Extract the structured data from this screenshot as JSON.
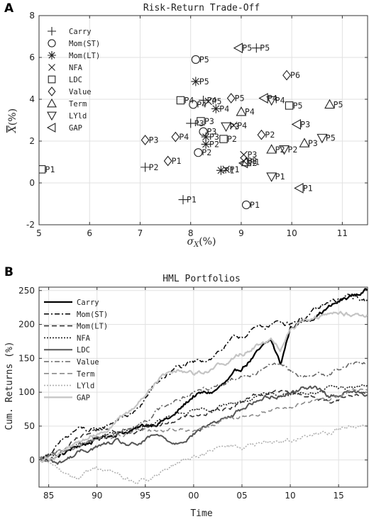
{
  "chart_data": [
    {
      "panel": "A",
      "type": "scatter",
      "title": "Risk-Return Trade-Off",
      "xlabel": "σ_X(%)",
      "ylabel": "X̄(%)",
      "xlim": [
        5,
        11.5
      ],
      "ylim": [
        -2,
        8
      ],
      "xticks": [
        5,
        6,
        7,
        8,
        9,
        10,
        11
      ],
      "yticks": [
        -2,
        0,
        2,
        4,
        6,
        8
      ],
      "grid": true,
      "legend_position": "top-left",
      "series": [
        {
          "name": "Carry",
          "marker": "plus",
          "points": [
            {
              "label": "P1",
              "x": 7.85,
              "y": -0.8
            },
            {
              "label": "P2",
              "x": 7.1,
              "y": 0.75
            },
            {
              "label": "P3",
              "x": 8.0,
              "y": 2.85
            },
            {
              "label": "P4",
              "x": 8.25,
              "y": 3.95
            },
            {
              "label": "P5",
              "x": 9.3,
              "y": 6.45
            }
          ]
        },
        {
          "name": "Mom(ST)",
          "marker": "circle",
          "points": [
            {
              "label": "P1",
              "x": 9.1,
              "y": -1.05
            },
            {
              "label": "P2",
              "x": 8.15,
              "y": 1.45
            },
            {
              "label": "P3",
              "x": 8.25,
              "y": 2.45
            },
            {
              "label": "P4",
              "x": 8.05,
              "y": 3.75
            },
            {
              "label": "P5",
              "x": 8.1,
              "y": 5.9
            }
          ]
        },
        {
          "name": "Mom(LT)",
          "marker": "star",
          "points": [
            {
              "label": "P1",
              "x": 8.6,
              "y": 0.6
            },
            {
              "label": "P2",
              "x": 8.3,
              "y": 1.85
            },
            {
              "label": "P3",
              "x": 8.3,
              "y": 2.2
            },
            {
              "label": "P4",
              "x": 8.5,
              "y": 3.55
            },
            {
              "label": "P5",
              "x": 8.1,
              "y": 4.85
            }
          ]
        },
        {
          "name": "NFA",
          "marker": "x",
          "points": [
            {
              "label": "P1",
              "x": 8.7,
              "y": 0.65
            },
            {
              "label": "P2",
              "x": 9.05,
              "y": 1.05
            },
            {
              "label": "P3",
              "x": 9.05,
              "y": 1.35
            },
            {
              "label": "P4",
              "x": 8.85,
              "y": 2.75
            },
            {
              "label": "P5",
              "x": 8.35,
              "y": 3.9
            }
          ]
        },
        {
          "name": "LDC",
          "marker": "square",
          "points": [
            {
              "label": "P1",
              "x": 5.05,
              "y": 0.65
            },
            {
              "label": "P2",
              "x": 8.65,
              "y": 2.1
            },
            {
              "label": "P3",
              "x": 8.2,
              "y": 2.95
            },
            {
              "label": "P4",
              "x": 7.8,
              "y": 3.95
            },
            {
              "label": "P5",
              "x": 9.95,
              "y": 3.7
            }
          ]
        },
        {
          "name": "Value",
          "marker": "diamond",
          "points": [
            {
              "label": "P1",
              "x": 7.55,
              "y": 1.05
            },
            {
              "label": "P2",
              "x": 9.4,
              "y": 2.3
            },
            {
              "label": "P3",
              "x": 7.1,
              "y": 2.05
            },
            {
              "label": "P4",
              "x": 7.7,
              "y": 2.2
            },
            {
              "label": "P5",
              "x": 8.8,
              "y": 4.05
            },
            {
              "label": "P6",
              "x": 9.9,
              "y": 5.15
            }
          ]
        },
        {
          "name": "Term",
          "marker": "triangle-up",
          "points": [
            {
              "label": "P1",
              "x": 9.1,
              "y": 1.0
            },
            {
              "label": "P2",
              "x": 9.6,
              "y": 1.6
            },
            {
              "label": "P3",
              "x": 10.25,
              "y": 1.9
            },
            {
              "label": "P4",
              "x": 9.0,
              "y": 3.4
            },
            {
              "label": "P5",
              "x": 10.75,
              "y": 3.75
            }
          ]
        },
        {
          "name": "LYld",
          "marker": "triangle-down",
          "points": [
            {
              "label": "P1",
              "x": 9.6,
              "y": 0.3
            },
            {
              "label": "P2",
              "x": 9.85,
              "y": 1.6
            },
            {
              "label": "P3",
              "x": 8.7,
              "y": 2.7
            },
            {
              "label": "P4",
              "x": 9.6,
              "y": 3.95
            },
            {
              "label": "P5",
              "x": 10.6,
              "y": 2.15
            }
          ]
        },
        {
          "name": "GAP",
          "marker": "triangle-left",
          "points": [
            {
              "label": "P1",
              "x": 10.15,
              "y": -0.25
            },
            {
              "label": "P2",
              "x": 9.05,
              "y": 0.95
            },
            {
              "label": "P3",
              "x": 10.1,
              "y": 2.8
            },
            {
              "label": "P4",
              "x": 9.45,
              "y": 4.05
            },
            {
              "label": "P5",
              "x": 8.95,
              "y": 6.45
            }
          ]
        }
      ]
    },
    {
      "panel": "B",
      "type": "line",
      "title": "HML Portfolios",
      "xlabel": "Time",
      "ylabel": "Cum. Returns (%)",
      "xlim": [
        1984,
        2018
      ],
      "ylim": [
        -40,
        255
      ],
      "xticks": [
        1985,
        1990,
        1995,
        2000,
        2005,
        2010,
        2015
      ],
      "xticklabels": [
        "85",
        "90",
        "95",
        "00",
        "05",
        "10",
        "15"
      ],
      "yticks": [
        0,
        50,
        100,
        150,
        200,
        250
      ],
      "grid": true,
      "legend_position": "top-left",
      "series": [
        {
          "name": "Carry",
          "color": "#000000",
          "width": 2.2,
          "dash": "",
          "noise": 5,
          "x": [
            1984,
            1986,
            1988,
            1990,
            1992,
            1994,
            1996,
            1998,
            2000,
            2002,
            2004,
            2006,
            2008,
            2009,
            2010,
            2012,
            2014,
            2016,
            2018
          ],
          "y": [
            0,
            5,
            20,
            30,
            40,
            45,
            55,
            65,
            95,
            100,
            120,
            150,
            175,
            140,
            195,
            210,
            225,
            240,
            250
          ]
        },
        {
          "name": "Mom(ST)",
          "color": "#111111",
          "width": 1.6,
          "dash": "7 3 2 3",
          "noise": 6,
          "x": [
            1984,
            1986,
            1988,
            1990,
            1992,
            1994,
            1996,
            1998,
            2000,
            2002,
            2004,
            2006,
            2008,
            2010,
            2012,
            2014,
            2016,
            2018
          ],
          "y": [
            0,
            20,
            45,
            40,
            60,
            70,
            110,
            135,
            140,
            155,
            175,
            190,
            200,
            205,
            215,
            230,
            240,
            235
          ]
        },
        {
          "name": "Mom(LT)",
          "color": "#333333",
          "width": 1.6,
          "dash": "7 4",
          "noise": 4,
          "x": [
            1984,
            1986,
            1988,
            1990,
            1992,
            1994,
            1996,
            1998,
            2000,
            2002,
            2004,
            2006,
            2008,
            2010,
            2012,
            2014,
            2016,
            2018
          ],
          "y": [
            0,
            10,
            30,
            40,
            45,
            45,
            50,
            60,
            65,
            70,
            80,
            95,
            100,
            100,
            95,
            85,
            95,
            100
          ]
        },
        {
          "name": "NFA",
          "color": "#222222",
          "width": 1.6,
          "dash": "2 2",
          "noise": 4,
          "x": [
            1984,
            1986,
            1988,
            1990,
            1992,
            1994,
            1996,
            1998,
            2000,
            2002,
            2004,
            2006,
            2008,
            2010,
            2012,
            2014,
            2016,
            2018
          ],
          "y": [
            0,
            10,
            20,
            30,
            40,
            45,
            55,
            65,
            70,
            75,
            85,
            90,
            95,
            100,
            100,
            105,
            108,
            110
          ]
        },
        {
          "name": "LDC",
          "color": "#555555",
          "width": 2.0,
          "dash": "",
          "noise": 5,
          "x": [
            1984,
            1986,
            1988,
            1990,
            1992,
            1994,
            1996,
            1998,
            2000,
            2002,
            2004,
            2006,
            2008,
            2010,
            2012,
            2014,
            2016,
            2018
          ],
          "y": [
            0,
            -5,
            10,
            20,
            25,
            20,
            35,
            25,
            40,
            55,
            65,
            85,
            95,
            100,
            110,
            95,
            100,
            100
          ]
        },
        {
          "name": "Value",
          "color": "#666666",
          "width": 1.6,
          "dash": "7 3 2 3",
          "noise": 5,
          "x": [
            1984,
            1986,
            1988,
            1990,
            1992,
            1994,
            1996,
            1998,
            2000,
            2002,
            2004,
            2006,
            2008,
            2010,
            2012,
            2014,
            2016,
            2018
          ],
          "y": [
            0,
            10,
            25,
            35,
            40,
            50,
            70,
            90,
            100,
            110,
            120,
            130,
            145,
            130,
            120,
            130,
            140,
            145
          ]
        },
        {
          "name": "Term",
          "color": "#8a8a8a",
          "width": 1.6,
          "dash": "7 4",
          "noise": 4,
          "x": [
            1984,
            1986,
            1988,
            1990,
            1992,
            1994,
            1996,
            1998,
            2000,
            2002,
            2004,
            2006,
            2008,
            2010,
            2012,
            2014,
            2016,
            2018
          ],
          "y": [
            0,
            10,
            20,
            30,
            35,
            40,
            45,
            45,
            45,
            50,
            60,
            65,
            75,
            80,
            85,
            90,
            100,
            105
          ]
        },
        {
          "name": "LYld",
          "color": "#b0b0b0",
          "width": 1.6,
          "dash": "2 2",
          "noise": 5,
          "x": [
            1984,
            1986,
            1988,
            1990,
            1992,
            1994,
            1996,
            1998,
            2000,
            2002,
            2004,
            2006,
            2008,
            2010,
            2012,
            2014,
            2016,
            2018
          ],
          "y": [
            0,
            -15,
            -25,
            -10,
            -20,
            -35,
            -25,
            -10,
            5,
            15,
            20,
            20,
            25,
            30,
            35,
            40,
            50,
            55
          ]
        },
        {
          "name": "GAP",
          "color": "#c4c4c4",
          "width": 2.2,
          "dash": "",
          "noise": 5,
          "x": [
            1984,
            1986,
            1988,
            1990,
            1992,
            1994,
            1996,
            1998,
            2000,
            2002,
            2004,
            2006,
            2008,
            2009,
            2010,
            2012,
            2014,
            2016,
            2018
          ],
          "y": [
            0,
            10,
            25,
            40,
            55,
            80,
            115,
            135,
            130,
            135,
            150,
            165,
            180,
            165,
            200,
            210,
            215,
            215,
            215
          ]
        }
      ]
    }
  ]
}
